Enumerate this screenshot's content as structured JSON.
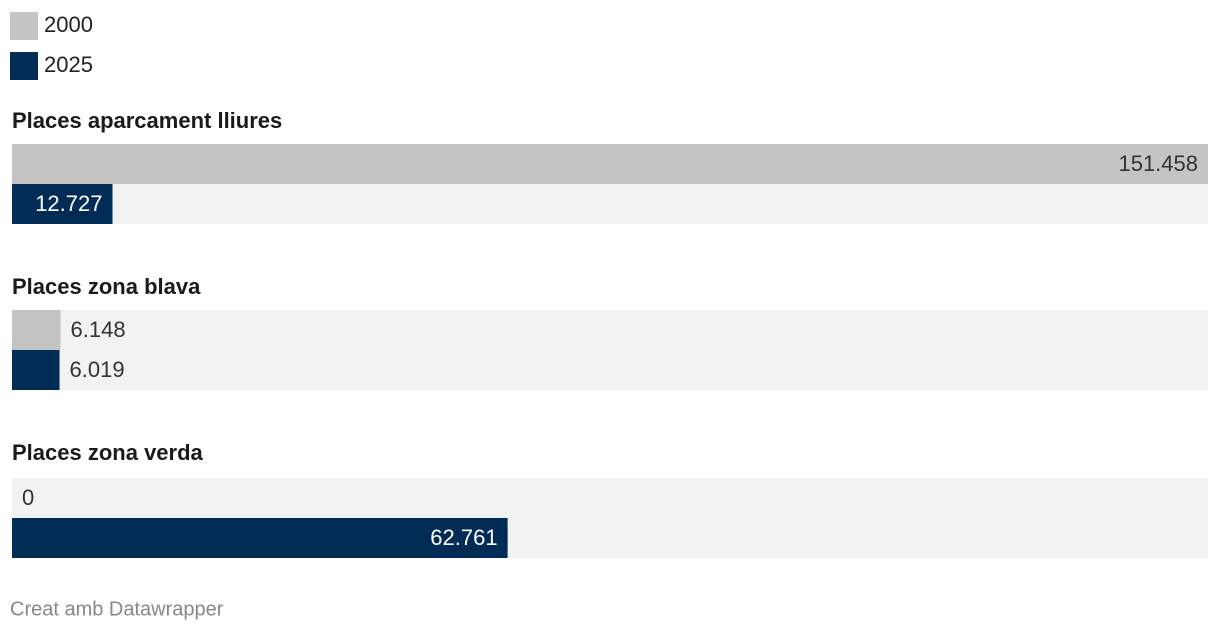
{
  "chart_data": {
    "type": "grouped-bar-horizontal",
    "categories": [
      "Places aparcament lliures",
      "Places zona blava",
      "Places zona verda"
    ],
    "series": [
      {
        "name": "2000",
        "color": "#c4c4c4",
        "values": [
          151458,
          6148,
          0
        ],
        "value_labels": [
          "151.458",
          "6.148",
          "0"
        ]
      },
      {
        "name": "2025",
        "color": "#002c55",
        "values": [
          12727,
          6019,
          62761
        ],
        "value_labels": [
          "12.727",
          "6.019",
          "62.761"
        ]
      }
    ],
    "xlim": [
      0,
      151458
    ],
    "footer": "Creat amb Datawrapper"
  }
}
